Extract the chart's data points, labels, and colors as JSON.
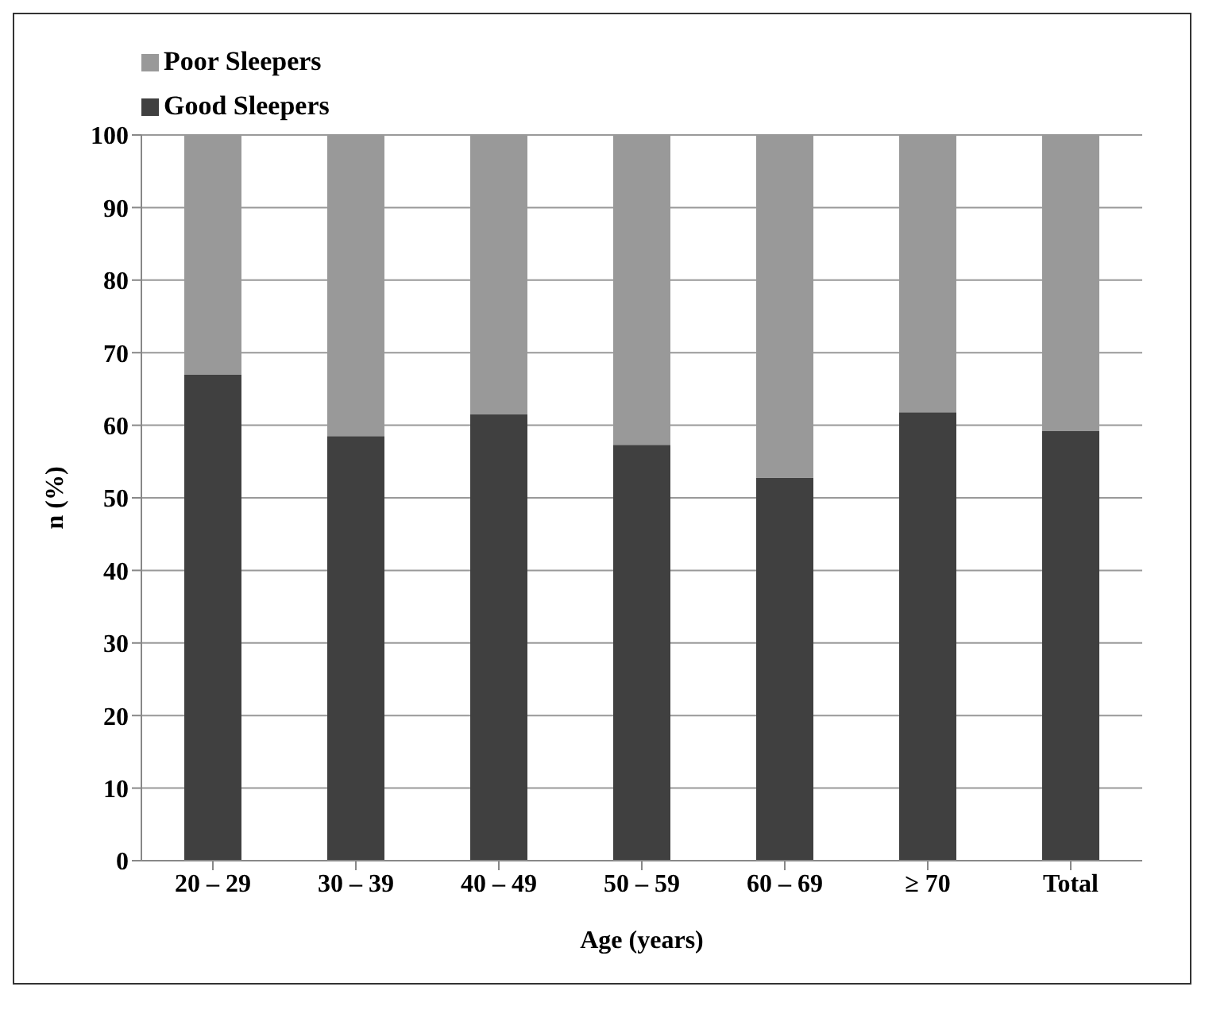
{
  "chart_data": {
    "type": "bar",
    "stacked": true,
    "xlabel": "Age (years)",
    "ylabel": "n (%)",
    "categories": [
      "20 – 29",
      "30 – 39",
      "40 – 49",
      "50 – 59",
      "60 – 69",
      "≥ 70",
      "Total"
    ],
    "series": [
      {
        "name": "Good Sleepers",
        "color": "#404040",
        "values": [
          67,
          58.5,
          61.5,
          57.3,
          52.8,
          61.8,
          59.2
        ]
      },
      {
        "name": "Poor Sleepers",
        "color": "#999999",
        "values": [
          33,
          41.5,
          38.5,
          42.7,
          47.2,
          38.2,
          40.8
        ]
      }
    ],
    "ylim": [
      0,
      100
    ],
    "yticks": [
      0,
      10,
      20,
      30,
      40,
      50,
      60,
      70,
      80,
      90,
      100
    ],
    "grid": "y",
    "legend": "top left"
  }
}
